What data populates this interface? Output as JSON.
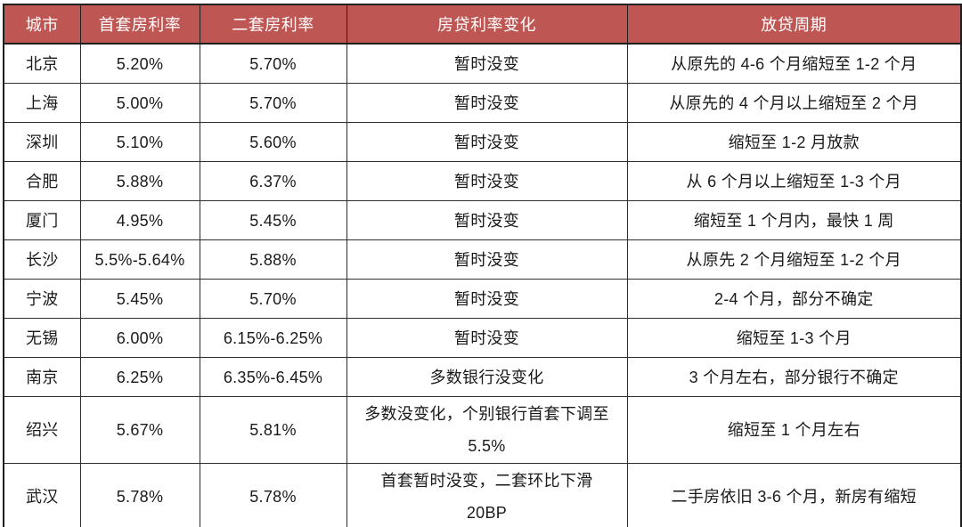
{
  "table": {
    "headers": [
      "城市",
      "首套房利率",
      "二套房利率",
      "房贷利率变化",
      "放贷周期"
    ],
    "rows": [
      [
        "北京",
        "5.20%",
        "5.70%",
        "暂时没变",
        "从原先的 4-6 个月缩短至 1-2 个月"
      ],
      [
        "上海",
        "5.00%",
        "5.70%",
        "暂时没变",
        "从原先的 4 个月以上缩短至 2 个月"
      ],
      [
        "深圳",
        "5.10%",
        "5.60%",
        "暂时没变",
        "缩短至 1-2 月放款"
      ],
      [
        "合肥",
        "5.88%",
        "6.37%",
        "暂时没变",
        "从 6 个月以上缩短至 1-3 个月"
      ],
      [
        "厦门",
        "4.95%",
        "5.45%",
        "暂时没变",
        "缩短至 1 个月内，最快 1 周"
      ],
      [
        "长沙",
        "5.5%-5.64%",
        "5.88%",
        "暂时没变",
        "从原先 2 个月缩短至 1-2 个月"
      ],
      [
        "宁波",
        "5.45%",
        "5.70%",
        "暂时没变",
        "2-4 个月，部分不确定"
      ],
      [
        "无锡",
        "6.00%",
        "6.15%-6.25%",
        "暂时没变",
        "缩短至 1-3 个月"
      ],
      [
        "南京",
        "6.25%",
        "6.35%-6.45%",
        "多数银行没变化",
        "3 个月左右，部分银行不确定"
      ],
      [
        "绍兴",
        "5.67%",
        "5.81%",
        "多数没变化，个别银行首套下调至\n5.5%",
        "缩短至 1 个月左右"
      ],
      [
        "武汉",
        "5.78%",
        "5.78%",
        "首套暂时没变，二套环比下滑\n20BP",
        "二手房依旧 3-6 个月，新房有缩短"
      ]
    ]
  },
  "colors": {
    "header_bg": "#be5754",
    "header_text": "#ffffff",
    "body_text": "#1a1a1a",
    "border": "#2e2e2e"
  }
}
